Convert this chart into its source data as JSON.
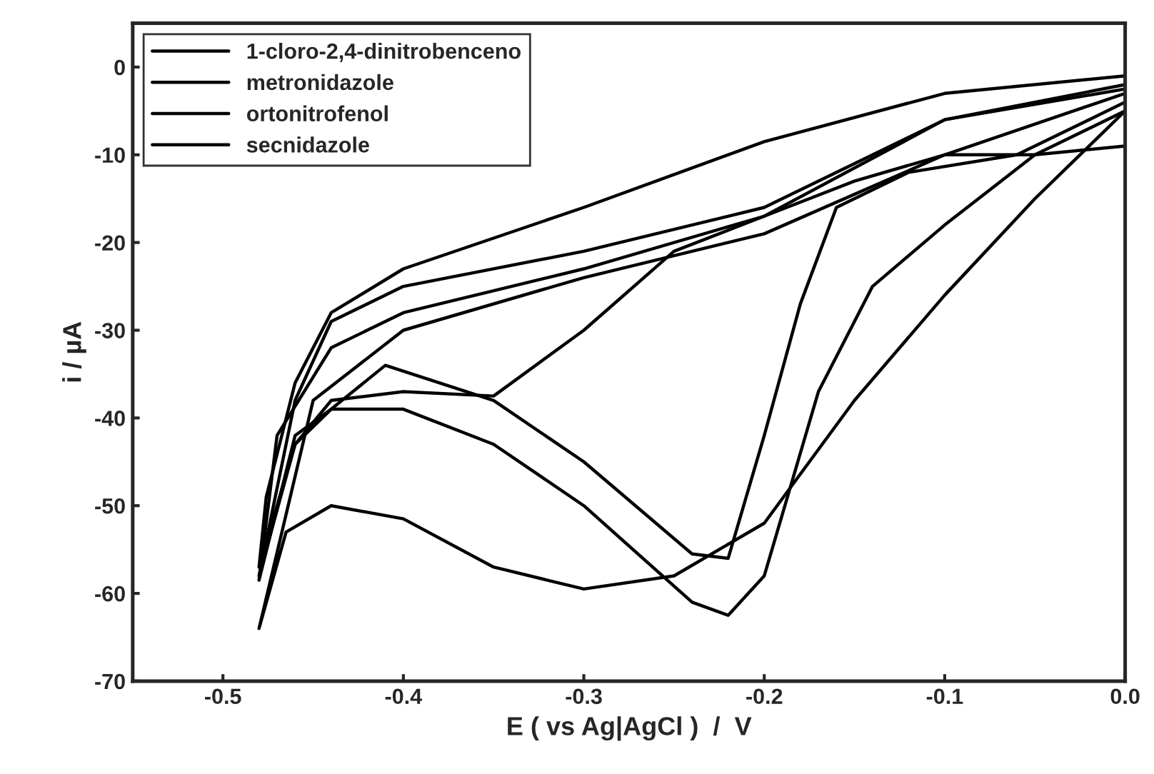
{
  "chart_data": {
    "type": "line",
    "xlabel": "E ( vs Ag|AgCl )  /  V",
    "ylabel": "i / µA",
    "xlim": [
      -0.55,
      0.0
    ],
    "ylim": [
      -70,
      5
    ],
    "xticks": [
      -0.5,
      -0.4,
      -0.3,
      -0.2,
      -0.1,
      {
        "value": 0.0,
        "label": "0.0"
      }
    ],
    "yticks": [
      0,
      -10,
      -20,
      -30,
      -40,
      -50,
      -60,
      -70
    ],
    "grid": false,
    "legend": "top left",
    "marker": "none",
    "line_style": "solid",
    "series": [
      {
        "name": "1-cloro-2,4-dinitrobenceno",
        "color": "#000000",
        "x": [
          0.0,
          -0.1,
          -0.2,
          -0.3,
          -0.4,
          -0.44,
          -0.46,
          -0.476,
          -0.48,
          -0.46,
          -0.44,
          -0.4,
          -0.35,
          -0.3,
          -0.25,
          -0.2,
          -0.15,
          -0.1,
          -0.05,
          0.0
        ],
        "values": [
          -1,
          -3,
          -8.5,
          -16,
          -23,
          -28,
          -36,
          -49,
          -57,
          -43,
          -38,
          -37,
          -37.5,
          -30,
          -21,
          -17,
          -13,
          -10,
          -10,
          -9
        ]
      },
      {
        "name": "metronidazole",
        "color": "#000000",
        "x": [
          0.0,
          -0.1,
          -0.2,
          -0.3,
          -0.4,
          -0.44,
          -0.46,
          -0.48,
          -0.46,
          -0.44,
          -0.41,
          -0.35,
          -0.3,
          -0.24,
          -0.22,
          -0.2,
          -0.18,
          -0.16,
          -0.12,
          -0.06,
          0.0
        ],
        "values": [
          -2,
          -6,
          -16,
          -21,
          -25,
          -29,
          -38,
          -58,
          -43,
          -39,
          -34,
          -38,
          -45,
          -55.5,
          -56,
          -42,
          -27,
          -16,
          -12,
          -10,
          -4
        ]
      },
      {
        "name": "ortonitrofenol",
        "color": "#000000",
        "x": [
          0.0,
          -0.1,
          -0.2,
          -0.3,
          -0.4,
          -0.44,
          -0.47,
          -0.48,
          -0.46,
          -0.44,
          -0.4,
          -0.35,
          -0.3,
          -0.24,
          -0.22,
          -0.2,
          -0.17,
          -0.14,
          -0.1,
          -0.05,
          0.0
        ],
        "values": [
          -2.5,
          -6,
          -17,
          -23,
          -28,
          -32,
          -42,
          -58.5,
          -42,
          -39,
          -39,
          -43,
          -50,
          -61,
          -62.5,
          -58,
          -37,
          -25,
          -18,
          -10,
          -5
        ]
      },
      {
        "name": "secnidazole",
        "color": "#000000",
        "x": [
          0.0,
          -0.1,
          -0.2,
          -0.3,
          -0.4,
          -0.45,
          -0.48,
          -0.465,
          -0.44,
          -0.4,
          -0.35,
          -0.3,
          -0.25,
          -0.2,
          -0.15,
          -0.1,
          -0.05,
          0.0
        ],
        "values": [
          -3,
          -10,
          -19,
          -24,
          -30,
          -38,
          -64,
          -53,
          -50,
          -51.5,
          -57,
          -59.5,
          -58,
          -52,
          -38,
          -26,
          -15,
          -5
        ]
      }
    ]
  }
}
